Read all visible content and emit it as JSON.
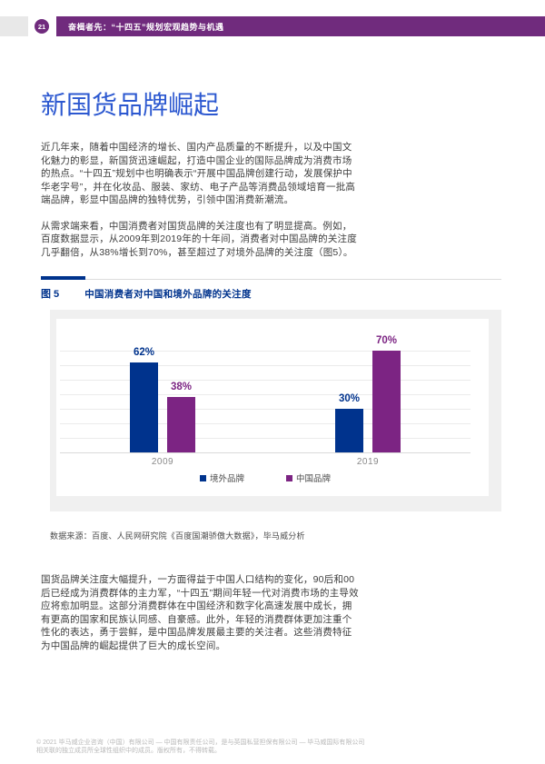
{
  "header": {
    "page_number": "21",
    "title": "奋楫者先：“十四五”规划宏观趋势与机遇"
  },
  "article": {
    "title": "新国货品牌崛起",
    "paragraph1": "近几年来，随着中国经济的增长、国内产品质量的不断提升，以及中国文化魅力的彰显，新国货迅速崛起，打造中国企业的国际品牌成为消费市场的热点。“十四五”规划中也明确表示“开展中国品牌创建行动，发展保护中华老字号”，并在化妆品、服装、家纺、电子产品等消费品领域培育一批高端品牌，彰显中国品牌的独特优势，引领中国消费新潮流。",
    "paragraph2": "从需求端来看，中国消费者对国货品牌的关注度也有了明显提高。例如，百度数据显示，从2009年到2019年的十年间，消费者对中国品牌的关注度几乎翻倍，从38%增长到70%，甚至超过了对境外品牌的关注度（图5）。",
    "paragraph3": "国货品牌关注度大幅提升，一方面得益于中国人口结构的变化，90后和00后已经成为消费群体的主力军，“十四五”期间年轻一代对消费市场的主导效应将愈加明显。这部分消费群体在中国经济和数字化高速发展中成长，拥有更高的国家和民族认同感、自豪感。此外，年轻的消费群体更加注重个性化的表达，勇于尝鲜，是中国品牌发展最主要的关注者。这些消费特征为中国品牌的崛起提供了巨大的成长空间。"
  },
  "figure": {
    "label": "图 5"
  },
  "chart_data": {
    "type": "bar",
    "title": "中国消费者对中国和境外品牌的关注度",
    "categories": [
      "2009",
      "2019"
    ],
    "series": [
      {
        "name": "境外品牌",
        "color": "#00338d",
        "values": [
          62,
          30
        ]
      },
      {
        "name": "中国品牌",
        "color": "#7c2483",
        "values": [
          38,
          70
        ]
      }
    ],
    "unit": "%",
    "ylim": [
      0,
      80
    ],
    "grid_step": 10,
    "grid": true,
    "legend_position": "bottom",
    "source": "数据来源：百度、人民网研究院《百度国潮骄傲大数据》，毕马威分析"
  },
  "footer": {
    "line1": "© 2021 毕马威企业咨询（中国）有限公司 — 中国有限责任公司，是与英国私营担保有限公司 — 毕马威国际有限公司",
    "line2": "相关联的独立成员所全球性组织中的成员。版权所有，不得转载。"
  }
}
